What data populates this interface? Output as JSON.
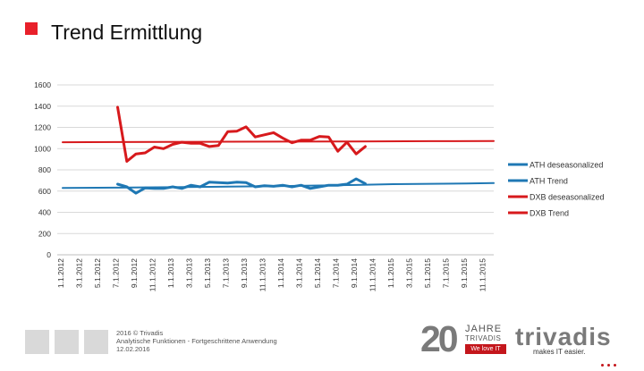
{
  "slide": {
    "title": "Trend Ermittlung",
    "accent_color": "#e8202a"
  },
  "chart_data": {
    "type": "line",
    "title": "",
    "xlabel": "",
    "ylabel": "",
    "ylim": [
      0,
      1600
    ],
    "yticks": [
      0,
      200,
      400,
      600,
      800,
      1000,
      1200,
      1400,
      1600
    ],
    "tick_labels": [
      "1.1.2012",
      "3.1.2012",
      "5.1.2012",
      "7.1.2012",
      "9.1.2012",
      "11.1.2012",
      "1.1.2013",
      "3.1.2013",
      "5.1.2013",
      "7.1.2013",
      "9.1.2013",
      "11.1.2013",
      "1.1.2014",
      "3.1.2014",
      "5.1.2014",
      "7.1.2014",
      "9.1.2014",
      "11.1.2014",
      "1.1.2015",
      "3.1.2015",
      "5.1.2015",
      "7.1.2015",
      "9.1.2015",
      "11.1.2015"
    ],
    "legend_position": "right",
    "series": [
      {
        "name": "ATH deseasonalized",
        "color": "#1f78b4",
        "x": [
          3,
          3.5,
          4,
          4.5,
          5,
          5.5,
          6,
          6.5,
          7,
          7.5,
          8,
          8.5,
          9,
          9.5,
          10,
          10.5,
          11,
          11.5,
          12,
          12.5,
          13,
          13.5,
          14,
          14.5,
          15,
          15.5,
          16,
          16.5
        ],
        "values": [
          665,
          640,
          580,
          630,
          625,
          625,
          640,
          625,
          655,
          640,
          685,
          680,
          675,
          685,
          680,
          640,
          650,
          645,
          655,
          640,
          655,
          625,
          640,
          655,
          655,
          665,
          715,
          670
        ]
      },
      {
        "name": "ATH Trend",
        "color": "#1f78b4",
        "x": [
          0,
          3,
          8,
          12,
          16,
          18,
          22,
          23.5
        ],
        "values": [
          630,
          632,
          640,
          648,
          658,
          665,
          672,
          675
        ]
      },
      {
        "name": "DXB deseasonalized",
        "color": "#d7191c",
        "x": [
          3,
          3.5,
          4,
          4.5,
          5,
          5.5,
          6,
          6.5,
          7,
          7.5,
          8,
          8.5,
          9,
          9.5,
          10,
          10.5,
          11,
          11.5,
          12,
          12.5,
          13,
          13.5,
          14,
          14.5,
          15,
          15.5,
          16,
          16.5
        ],
        "values": [
          1390,
          880,
          950,
          960,
          1015,
          1000,
          1040,
          1060,
          1050,
          1050,
          1020,
          1030,
          1160,
          1165,
          1205,
          1110,
          1130,
          1150,
          1100,
          1055,
          1080,
          1080,
          1115,
          1110,
          975,
          1060,
          950,
          1020
        ]
      },
      {
        "name": "DXB Trend",
        "color": "#d7191c",
        "x": [
          0,
          3,
          8,
          12,
          16,
          20,
          23.5
        ],
        "values": [
          1060,
          1062,
          1064,
          1066,
          1068,
          1070,
          1072
        ]
      }
    ]
  },
  "footer": {
    "copyright": "2016 © Trivadis",
    "subtitle": "Analytische Funktionen - Fortgeschrittene Anwendung",
    "date": "12.02.2016",
    "jubilee_number": "20",
    "jubilee_word": "JAHRE",
    "jubilee_brand": "TRIVADIS",
    "jubilee_slogan": "We love IT",
    "brand_name": "trivadis",
    "brand_tagline": "makes IT easier."
  }
}
